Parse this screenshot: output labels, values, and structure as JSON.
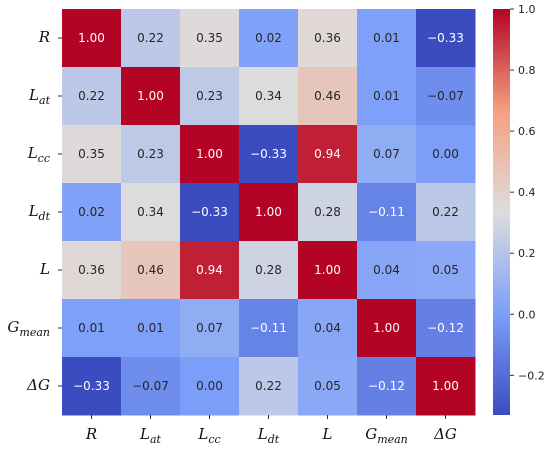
{
  "chart_data": {
    "type": "heatmap",
    "rows": [
      {
        "base": "R",
        "sub": ""
      },
      {
        "base": "L",
        "sub": "at"
      },
      {
        "base": "L",
        "sub": "cc"
      },
      {
        "base": "L",
        "sub": "dt"
      },
      {
        "base": "L",
        "sub": ""
      },
      {
        "base": "G",
        "sub": "mean"
      },
      {
        "base": "ΔG",
        "sub": ""
      }
    ],
    "columns": [
      {
        "base": "R",
        "sub": ""
      },
      {
        "base": "L",
        "sub": "at"
      },
      {
        "base": "L",
        "sub": "cc"
      },
      {
        "base": "L",
        "sub": "dt"
      },
      {
        "base": "L",
        "sub": ""
      },
      {
        "base": "G",
        "sub": "mean"
      },
      {
        "base": "ΔG",
        "sub": ""
      }
    ],
    "values": [
      [
        1.0,
        0.22,
        0.35,
        0.02,
        0.36,
        0.01,
        -0.33
      ],
      [
        0.22,
        1.0,
        0.23,
        0.34,
        0.46,
        0.01,
        -0.07
      ],
      [
        0.35,
        0.23,
        1.0,
        -0.33,
        0.94,
        0.07,
        0.0
      ],
      [
        0.02,
        0.34,
        -0.33,
        1.0,
        0.28,
        -0.11,
        0.22
      ],
      [
        0.36,
        0.46,
        0.94,
        0.28,
        1.0,
        0.04,
        0.05
      ],
      [
        0.01,
        0.01,
        0.07,
        -0.11,
        0.04,
        1.0,
        -0.12
      ],
      [
        -0.33,
        -0.07,
        0.0,
        0.22,
        0.05,
        -0.12,
        1.0
      ]
    ],
    "value_labels": [
      [
        "1.00",
        "0.22",
        "0.35",
        "0.02",
        "0.36",
        "0.01",
        "−0.33"
      ],
      [
        "0.22",
        "1.00",
        "0.23",
        "0.34",
        "0.46",
        "0.01",
        "−0.07"
      ],
      [
        "0.35",
        "0.23",
        "1.00",
        "−0.33",
        "0.94",
        "0.07",
        "0.00"
      ],
      [
        "0.02",
        "0.34",
        "−0.33",
        "1.00",
        "0.28",
        "−0.11",
        "0.22"
      ],
      [
        "0.36",
        "0.46",
        "0.94",
        "0.28",
        "1.00",
        "0.04",
        "0.05"
      ],
      [
        "0.01",
        "0.01",
        "0.07",
        "−0.11",
        "0.04",
        "1.00",
        "−0.12"
      ],
      [
        "−0.33",
        "−0.07",
        "0.00",
        "0.22",
        "0.05",
        "−0.12",
        "1.00"
      ]
    ],
    "colorbar": {
      "min": -0.33,
      "max": 1.0,
      "colormap": "coolwarm",
      "ticks": [
        1.0,
        0.8,
        0.6,
        0.4,
        0.2,
        0.0,
        -0.2
      ],
      "tick_labels": [
        "1.0",
        "0.8",
        "0.6",
        "0.4",
        "0.2",
        "0.0",
        "−0.2"
      ]
    },
    "title": "",
    "xlabel": "",
    "ylabel": ""
  }
}
